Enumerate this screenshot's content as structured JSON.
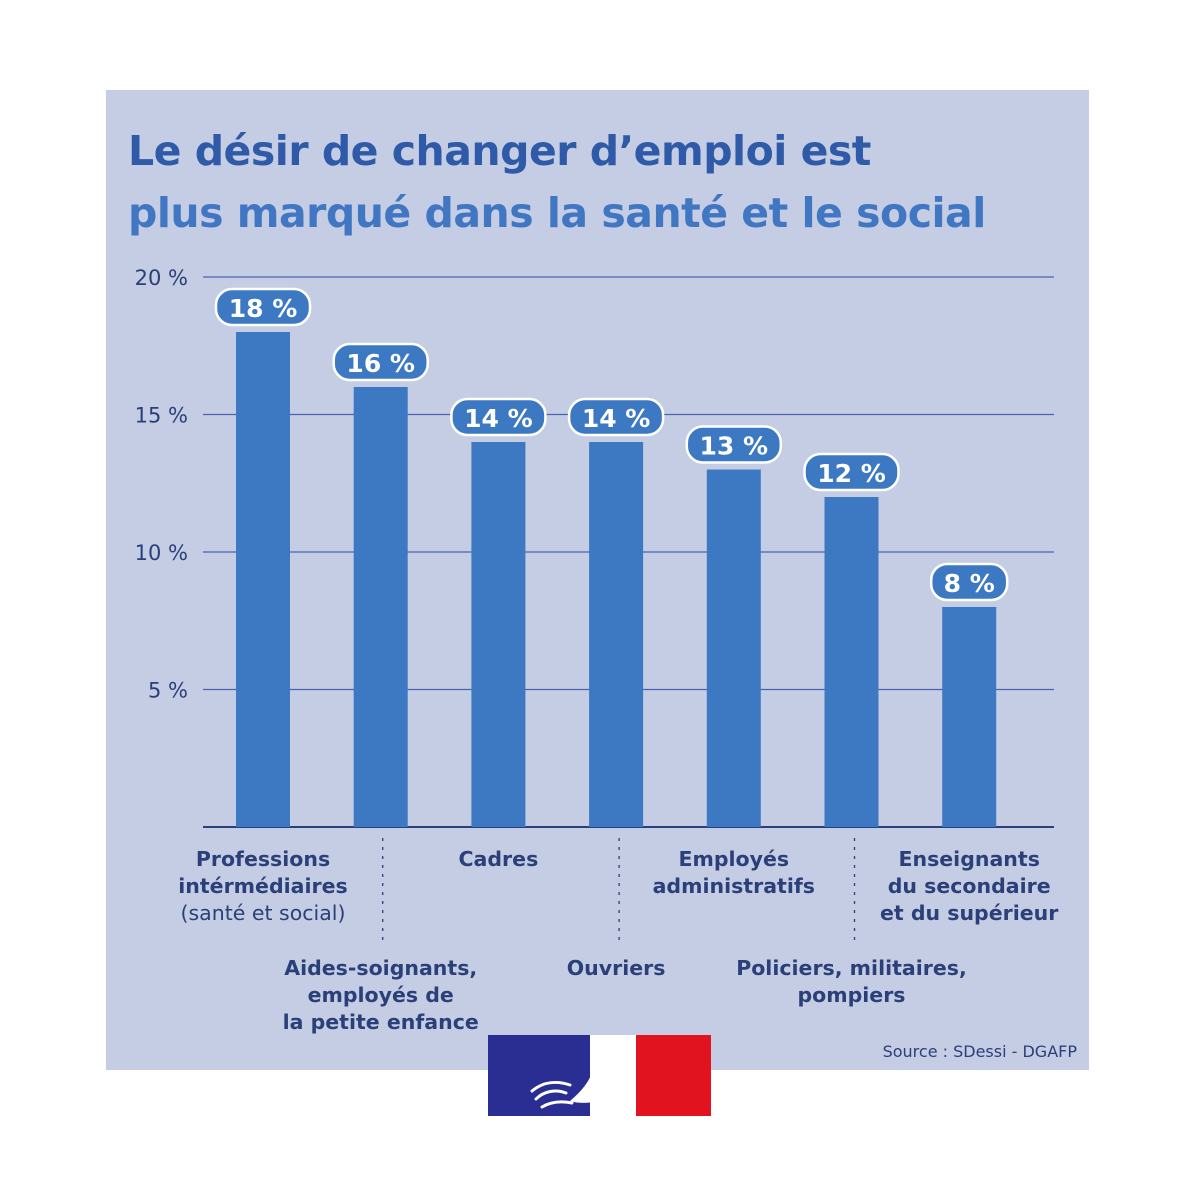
{
  "title": {
    "line1": "Le désir de changer d’emploi est",
    "line2": "plus marqué dans la santé et le social"
  },
  "source": "Source : SDessi - DGAFP",
  "colors": {
    "panel": "#c4cde4",
    "bar": "#3d79c3",
    "title_dark": "#2f5aa8",
    "title_light": "#4176c3",
    "text": "#2b3f78",
    "gridline": "#4a63b0"
  },
  "chart_data": {
    "type": "bar",
    "title": "Le désir de changer d’emploi est plus marqué dans la santé et le social",
    "xlabel": "",
    "ylabel": "",
    "ylim": [
      0,
      20
    ],
    "yticks": [
      5,
      10,
      15,
      20
    ],
    "ytick_labels": [
      "5 %",
      "10 %",
      "15 %",
      "20 %"
    ],
    "grid": true,
    "categories": [
      [
        "Professions",
        "intérmédiaires",
        "(santé et social)"
      ],
      [
        "Aides-soignants,",
        "employés de",
        "la petite enfance"
      ],
      [
        "Cadres"
      ],
      [
        "Ouvriers"
      ],
      [
        "Employés",
        "administratifs"
      ],
      [
        "Policiers, militaires,",
        "pompiers"
      ],
      [
        "Enseignants",
        "du secondaire",
        "et du supérieur"
      ]
    ],
    "values": [
      18,
      16,
      14,
      14,
      13,
      12,
      8
    ],
    "data_labels": [
      "18 %",
      "16 %",
      "14 %",
      "14 %",
      "13 %",
      "12 %",
      "8 %"
    ]
  },
  "logo_name": "marianne-logo"
}
